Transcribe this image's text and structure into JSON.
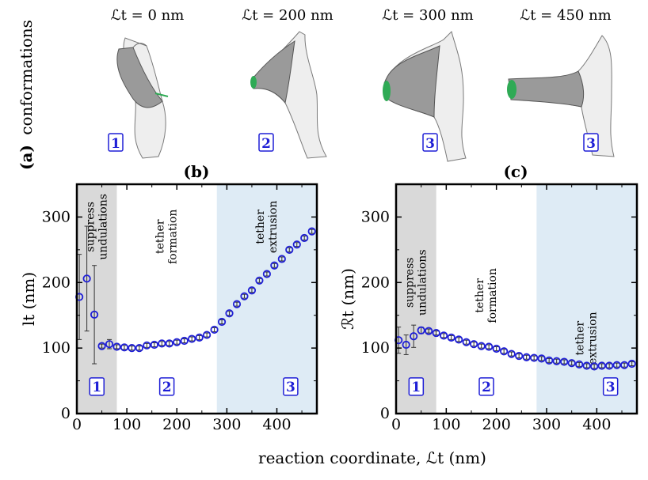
{
  "figure": {
    "panel_a_label": "(a)",
    "panel_a_text": "conformations",
    "panel_b_label": "(b)",
    "panel_c_label": "(c)",
    "xlabel": "reaction coordinate, ℒt (nm)"
  },
  "conformations": [
    {
      "title": "ℒt = 0 nm",
      "badge": "1"
    },
    {
      "title": "ℒt = 200 nm",
      "badge": "2"
    },
    {
      "title": "ℒt = 300 nm",
      "badge": "3"
    },
    {
      "title": "ℒt = 450 nm",
      "badge": "3"
    }
  ],
  "colors": {
    "marker": "#1f1fd6",
    "region1": "#d9d9d9",
    "region3": "#deebf5",
    "membrane": "#9a9a9a",
    "tip": "#2faa55"
  },
  "chart_data": [
    {
      "type": "scatter",
      "panel": "(b)",
      "ylabel": "lt (nm)",
      "xlim": [
        0,
        480
      ],
      "ylim": [
        0,
        350
      ],
      "xticks": [
        "0",
        "100",
        "200",
        "300",
        "400"
      ],
      "yticks": [
        "0",
        "100",
        "200",
        "300"
      ],
      "regions": [
        {
          "label": "suppress undulations",
          "x0": 0,
          "x1": 80,
          "color": "region1",
          "badge": "1"
        },
        {
          "label": "tether formation",
          "x0": 80,
          "x1": 280,
          "color": "none",
          "badge": "2"
        },
        {
          "label": "tether extrusion",
          "x0": 280,
          "x1": 480,
          "color": "region3",
          "badge": "3"
        }
      ],
      "x": [
        5,
        20,
        35,
        50,
        65,
        80,
        95,
        110,
        125,
        140,
        155,
        170,
        185,
        200,
        215,
        230,
        245,
        260,
        275,
        290,
        305,
        320,
        335,
        350,
        365,
        380,
        395,
        410,
        425,
        440,
        455,
        470
      ],
      "y": [
        178,
        206,
        151,
        103,
        106,
        102,
        101,
        100,
        100,
        104,
        105,
        107,
        107,
        109,
        111,
        114,
        116,
        120,
        128,
        140,
        153,
        167,
        179,
        188,
        203,
        213,
        226,
        236,
        250,
        258,
        268,
        278
      ],
      "err": [
        65,
        80,
        75,
        3,
        7,
        3,
        3,
        3,
        3,
        3,
        3,
        3,
        3,
        3,
        3,
        3,
        3,
        3,
        3,
        3,
        3,
        3,
        3,
        3,
        3,
        3,
        3,
        3,
        3,
        3,
        3,
        3
      ]
    },
    {
      "type": "scatter",
      "panel": "(c)",
      "ylabel": "ℛt (nm)",
      "xlim": [
        0,
        480
      ],
      "ylim": [
        0,
        350
      ],
      "xticks": [
        "0",
        "100",
        "200",
        "300",
        "400"
      ],
      "yticks": [
        "0",
        "100",
        "200",
        "300"
      ],
      "regions": [
        {
          "label": "suppress undulations",
          "x0": 0,
          "x1": 80,
          "color": "region1",
          "badge": "1"
        },
        {
          "label": "tether formation",
          "x0": 80,
          "x1": 280,
          "color": "none",
          "badge": "2"
        },
        {
          "label": "tether extrusion",
          "x0": 280,
          "x1": 480,
          "color": "region3",
          "badge": "3"
        }
      ],
      "x": [
        5,
        20,
        35,
        50,
        65,
        80,
        95,
        110,
        125,
        140,
        155,
        170,
        185,
        200,
        215,
        230,
        245,
        260,
        275,
        290,
        305,
        320,
        335,
        350,
        365,
        380,
        395,
        410,
        425,
        440,
        455,
        470
      ],
      "y": [
        112,
        105,
        118,
        127,
        126,
        123,
        119,
        116,
        113,
        109,
        106,
        103,
        102,
        99,
        95,
        91,
        88,
        86,
        85,
        84,
        81,
        80,
        79,
        77,
        75,
        73,
        72,
        73,
        73,
        74,
        74,
        76
      ],
      "err": [
        20,
        15,
        17,
        5,
        3,
        3,
        3,
        3,
        3,
        3,
        3,
        3,
        3,
        3,
        3,
        3,
        3,
        3,
        3,
        3,
        3,
        3,
        3,
        3,
        3,
        3,
        3,
        3,
        3,
        3,
        3,
        3
      ]
    }
  ]
}
